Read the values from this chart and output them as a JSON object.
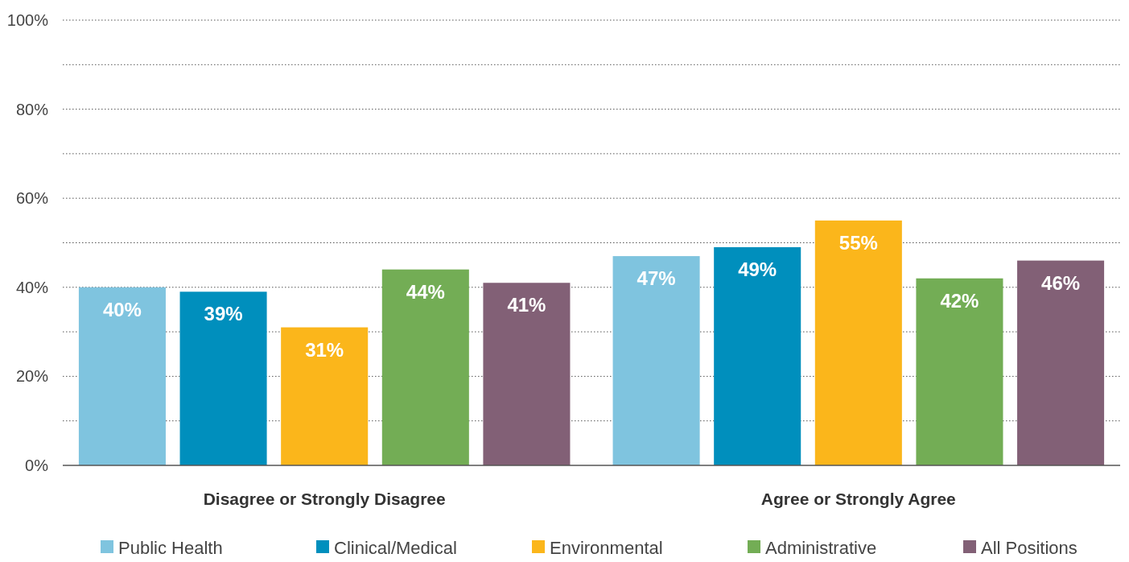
{
  "chart_data": {
    "type": "bar",
    "categories": [
      "Disagree or Strongly Disagree",
      "Agree or Strongly Agree"
    ],
    "series": [
      {
        "name": "Public Health",
        "color": "#7fc4df",
        "values": [
          40,
          47
        ],
        "value_labels": [
          "40%",
          "47%"
        ]
      },
      {
        "name": "Clinical/Medical",
        "color": "#008fbd",
        "values": [
          39,
          49
        ],
        "value_labels": [
          "39%",
          "49%"
        ]
      },
      {
        "name": "Environmental",
        "color": "#fbb61b",
        "values": [
          31,
          55
        ],
        "value_labels": [
          "31%",
          "55%"
        ]
      },
      {
        "name": "Administrative",
        "color": "#73ad55",
        "values": [
          44,
          42
        ],
        "value_labels": [
          "44%",
          "42%"
        ]
      },
      {
        "name": "All Positions",
        "color": "#826076",
        "values": [
          41,
          46
        ],
        "value_labels": [
          "41%",
          "46%"
        ]
      }
    ],
    "ylim": [
      0,
      100
    ],
    "yticks": [
      {
        "value": 0,
        "label": "0%"
      },
      {
        "value": 10,
        "label": null
      },
      {
        "value": 20,
        "label": "20%"
      },
      {
        "value": 30,
        "label": null
      },
      {
        "value": 40,
        "label": "40%"
      },
      {
        "value": 50,
        "label": null
      },
      {
        "value": 60,
        "label": "60%"
      },
      {
        "value": 70,
        "label": null
      },
      {
        "value": 80,
        "label": "80%"
      },
      {
        "value": 90,
        "label": null
      },
      {
        "value": 100,
        "label": "100%"
      }
    ],
    "grid": "y",
    "legend": "bottom"
  }
}
